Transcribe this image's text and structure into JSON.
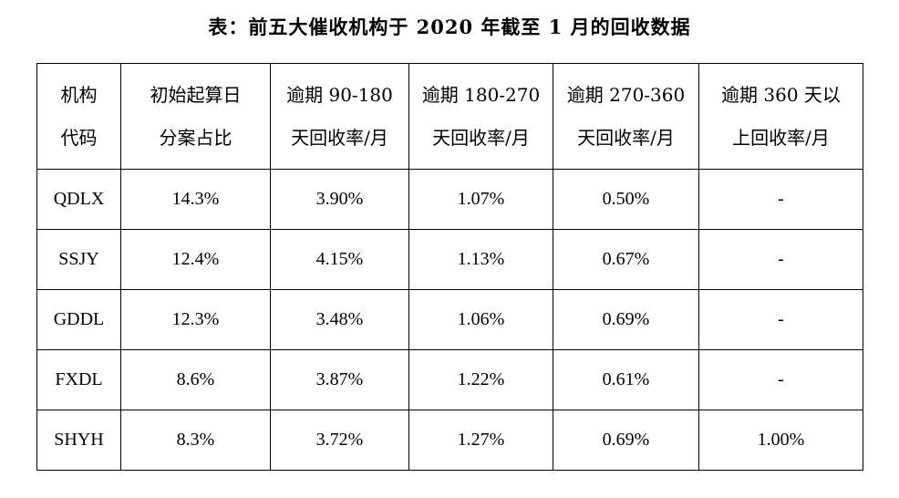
{
  "title": "表：前五大催收机构于 2020 年截至 1 月的回收数据",
  "table": {
    "headers": [
      [
        "机构",
        "代码"
      ],
      [
        "初始起算日",
        "分案占比"
      ],
      [
        "逾期 90-180",
        "天回收率/月"
      ],
      [
        "逾期 180-270",
        "天回收率/月"
      ],
      [
        "逾期 270-360",
        "天回收率/月"
      ],
      [
        "逾期 360 天以",
        "上回收率/月"
      ]
    ],
    "rows": [
      [
        "QDLX",
        "14.3%",
        "3.90%",
        "1.07%",
        "0.50%",
        "-"
      ],
      [
        "SSJY",
        "12.4%",
        "4.15%",
        "1.13%",
        "0.67%",
        "-"
      ],
      [
        "GDDL",
        "12.3%",
        "3.48%",
        "1.06%",
        "0.69%",
        "-"
      ],
      [
        "FXDL",
        "8.6%",
        "3.87%",
        "1.22%",
        "0.61%",
        "-"
      ],
      [
        "SHYH",
        "8.3%",
        "3.72%",
        "1.27%",
        "0.69%",
        "1.00%"
      ]
    ]
  }
}
